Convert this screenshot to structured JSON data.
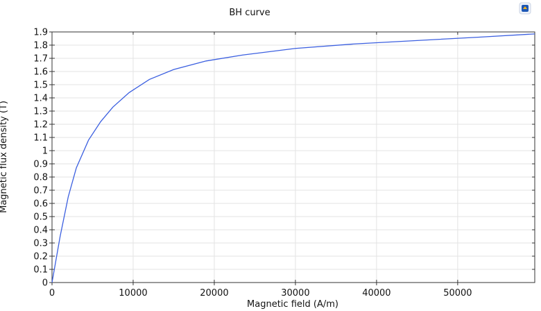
{
  "colors": {
    "series": "#3b5fe0",
    "grid": "#e3e3e3",
    "axis": "#333333"
  },
  "toolbar": {
    "icon": "comsol-logo-icon"
  },
  "chart_data": {
    "type": "line",
    "title": "BH curve",
    "xlabel": "Magnetic field (A/m)",
    "ylabel": "Magnetic flux density (T)",
    "xlim": [
      0,
      59500
    ],
    "ylim": [
      0,
      1.9
    ],
    "grid": true,
    "legend": "none",
    "xticks": [
      0,
      10000,
      20000,
      30000,
      40000,
      50000
    ],
    "yticks": [
      0,
      0.1,
      0.2,
      0.3,
      0.4,
      0.5,
      0.6,
      0.7,
      0.8,
      0.9,
      1,
      1.1,
      1.2,
      1.3,
      1.4,
      1.5,
      1.6,
      1.7,
      1.8,
      1.9
    ],
    "series": [
      {
        "x": [
          0,
          1000,
          2000,
          3000,
          4500,
          6000,
          7500,
          9500,
          12000,
          15000,
          19000,
          23500,
          30000,
          37500,
          45000,
          52500,
          59500
        ],
        "y": [
          0,
          0.35,
          0.65,
          0.87,
          1.08,
          1.22,
          1.33,
          1.44,
          1.54,
          1.615,
          1.68,
          1.725,
          1.775,
          1.81,
          1.835,
          1.86,
          1.885
        ]
      }
    ]
  }
}
